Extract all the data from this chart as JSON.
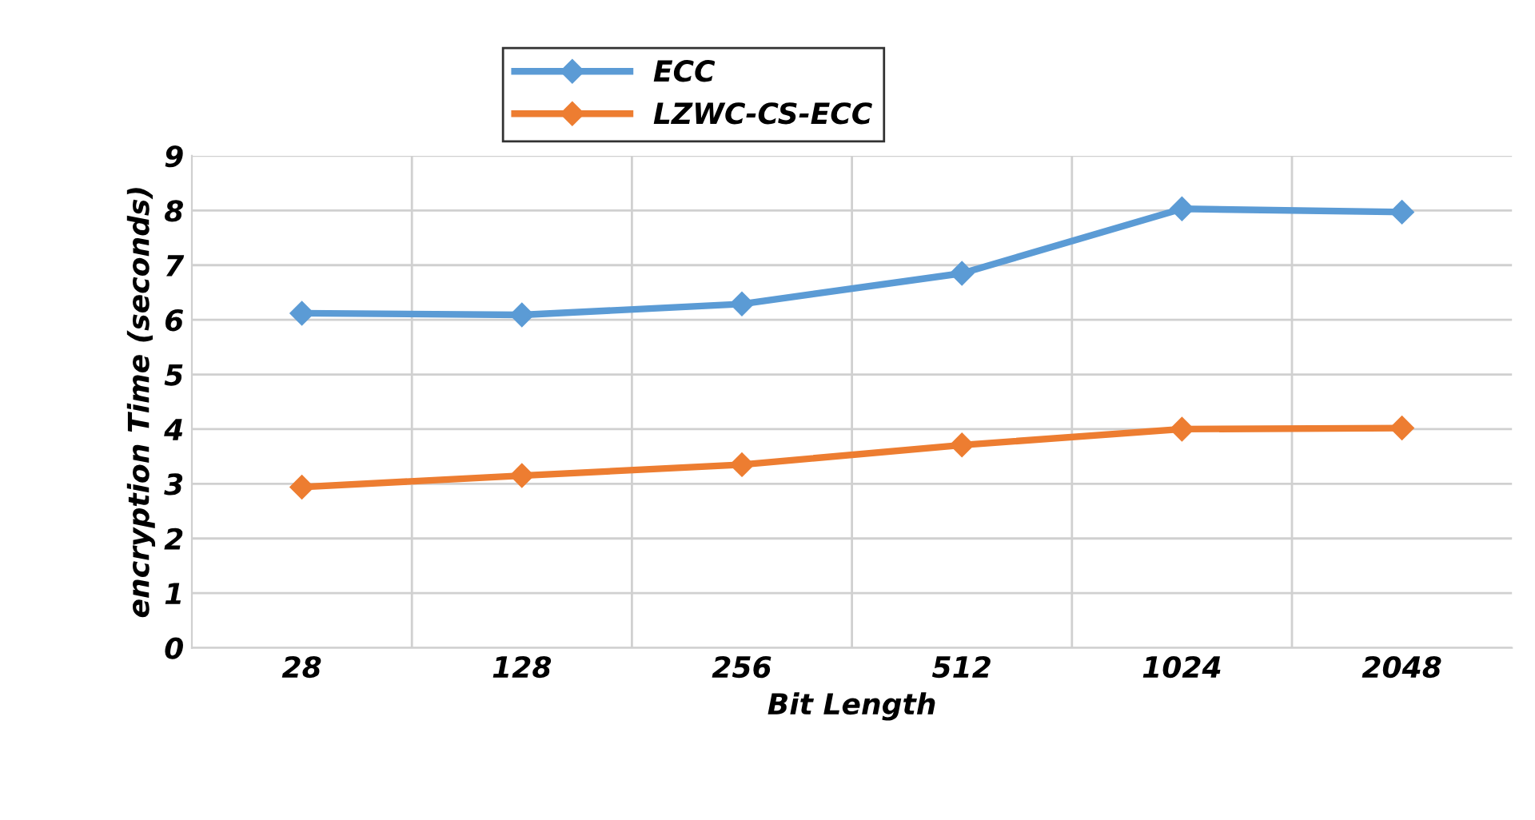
{
  "chart_data": {
    "type": "line",
    "xlabel": "Bit Length",
    "ylabel": "encryption Time (seconds)",
    "categories": [
      "28",
      "128",
      "256",
      "512",
      "1024",
      "2048"
    ],
    "series": [
      {
        "name": "ECC",
        "color": "#5b9bd5",
        "values": [
          6.12,
          6.09,
          6.29,
          6.85,
          8.03,
          7.97
        ]
      },
      {
        "name": "LZWC-CS-ECC",
        "color": "#ed7d31",
        "values": [
          2.94,
          3.15,
          3.35,
          3.71,
          4.0,
          4.02
        ]
      }
    ],
    "ylim": [
      0,
      9
    ],
    "yticks": [
      0,
      1,
      2,
      3,
      4,
      5,
      6,
      7,
      8,
      9
    ],
    "grid": true,
    "legend": "top",
    "marker": "diamond",
    "line_style": "solid"
  }
}
